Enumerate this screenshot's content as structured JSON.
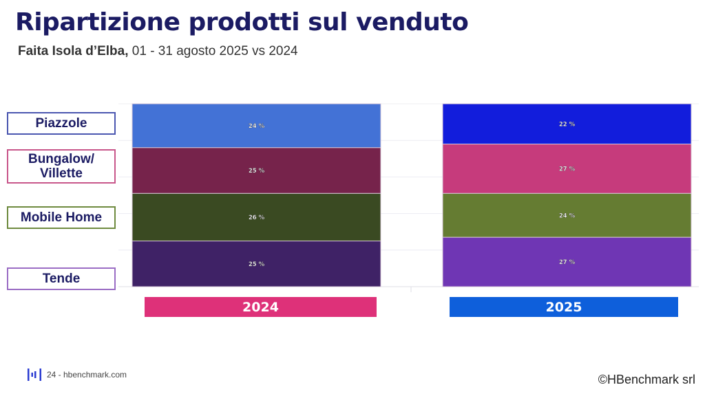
{
  "header": {
    "title": "Ripartizione prodotti sul venduto",
    "subtitle_bold": "Faita Isola d’Elba,",
    "subtitle_rest": " 01 - 31 agosto 2025 vs 2024"
  },
  "category_labels": [
    {
      "label": "Piazzole",
      "border_color": "#4a56b0"
    },
    {
      "label": "Bungalow/ Villette",
      "border_color": "#c8568a"
    },
    {
      "label": "Mobile Home",
      "border_color": "#6e8a3e"
    },
    {
      "label": "Tende",
      "border_color": "#9a6cc4"
    }
  ],
  "chart_data": {
    "type": "bar",
    "stacked": true,
    "normalized": true,
    "title": "Ripartizione prodotti sul venduto",
    "categories": [
      "2024",
      "2025"
    ],
    "stack_order_top_to_bottom": [
      "Piazzole",
      "Bungalow/ Villette",
      "Mobile Home",
      "Tende"
    ],
    "series": [
      {
        "name": "Piazzole",
        "values": [
          24,
          22
        ],
        "colors": [
          "#4372d6",
          "#121ddc"
        ]
      },
      {
        "name": "Bungalow/ Villette",
        "values": [
          25,
          27
        ],
        "colors": [
          "#76234b",
          "#c63b7c"
        ]
      },
      {
        "name": "Mobile Home",
        "values": [
          26,
          24
        ],
        "colors": [
          "#3a4a22",
          "#657c32"
        ]
      },
      {
        "name": "Tende",
        "values": [
          25,
          27
        ],
        "colors": [
          "#3f2266",
          "#6f36b4"
        ]
      }
    ],
    "value_suffix": " %",
    "ylim": [
      0,
      100
    ],
    "grid": true,
    "xlabel": "",
    "ylabel": ""
  },
  "year_labels": [
    {
      "label": "2024",
      "color": "#de3179"
    },
    {
      "label": "2025",
      "color": "#0e5fdb"
    }
  ],
  "footer": {
    "page_text": "24 - hbenchmark.com",
    "copyright": "©HBenchmark srl"
  }
}
